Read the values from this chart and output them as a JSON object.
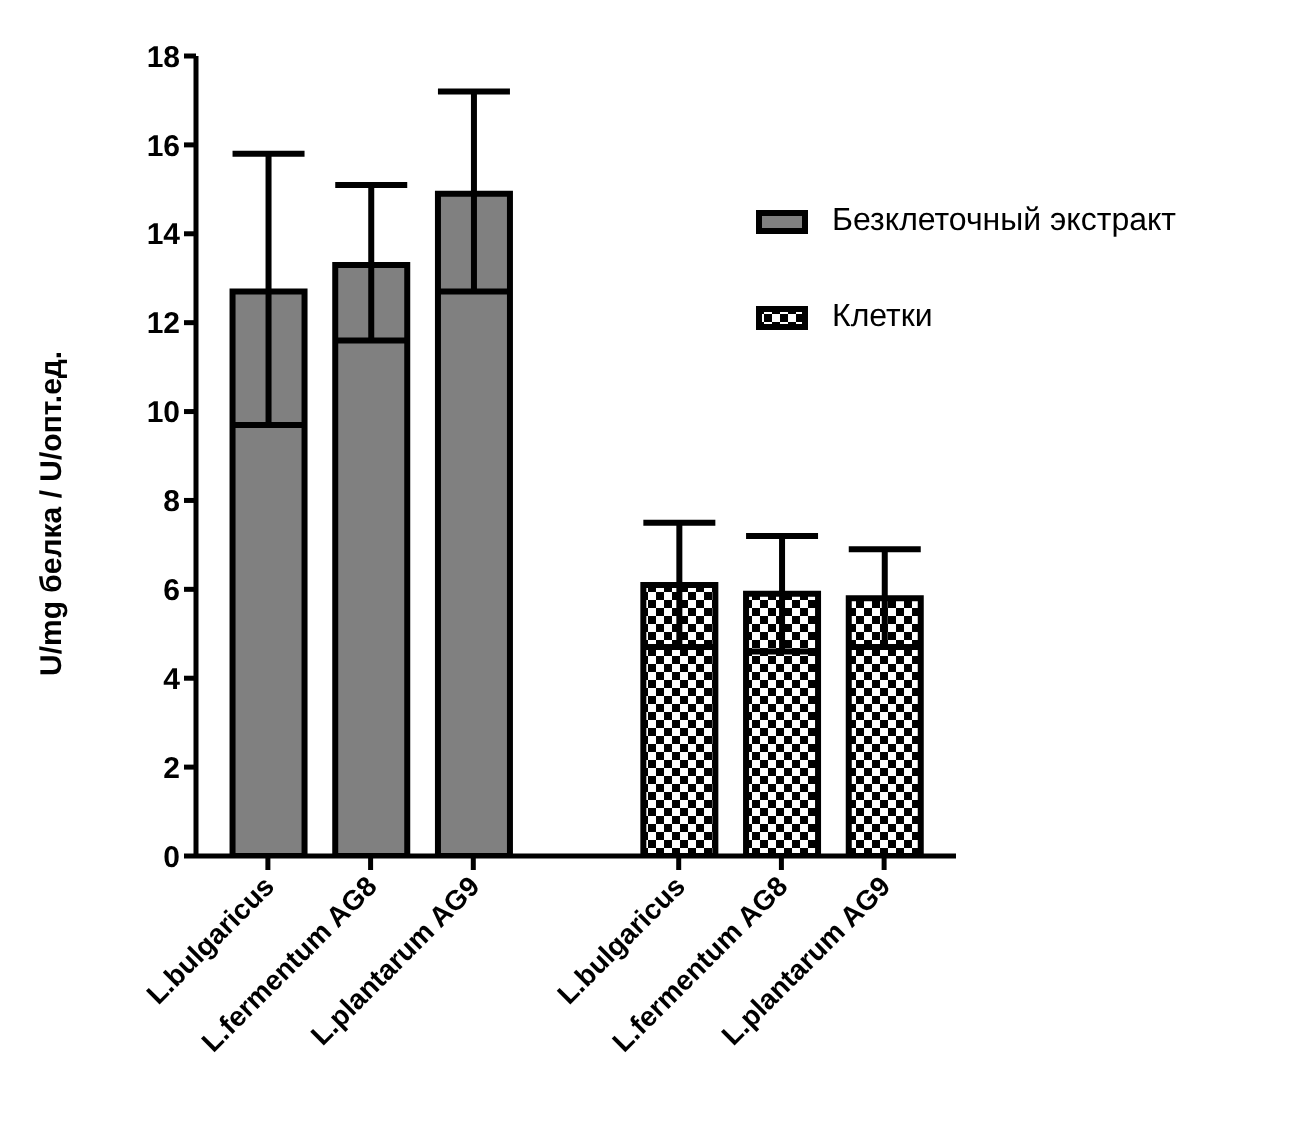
{
  "chart_data": {
    "type": "bar",
    "ylabel": "U/mg белка / U/опт.ед.",
    "categories": [
      "L.bulgaricus",
      "L.fermentum AG8",
      "L.plantarum AG9",
      null,
      "L.bulgaricus",
      "L.fermentum AG8",
      "L.plantarum AG9"
    ],
    "series": [
      {
        "name": "Безклеточный экстракт",
        "color": "#808080",
        "values": [
          12.7,
          13.3,
          14.9,
          null,
          null,
          null,
          null
        ],
        "errors": [
          [
            9.7,
            15.8
          ],
          [
            11.6,
            15.1
          ],
          [
            12.7,
            17.2
          ],
          null,
          null,
          null,
          null
        ]
      },
      {
        "name": "Клетки",
        "color": "#000000",
        "values": [
          null,
          null,
          null,
          null,
          6.1,
          5.9,
          5.8
        ],
        "errors": [
          null,
          null,
          null,
          null,
          [
            4.7,
            7.5
          ],
          [
            4.6,
            7.2
          ],
          [
            4.7,
            6.9
          ]
        ]
      }
    ],
    "ylim": [
      0,
      18
    ],
    "yticks": [
      0,
      2,
      4,
      6,
      8,
      10,
      12,
      14,
      16,
      18
    ],
    "grid": false,
    "legend": "top right"
  }
}
